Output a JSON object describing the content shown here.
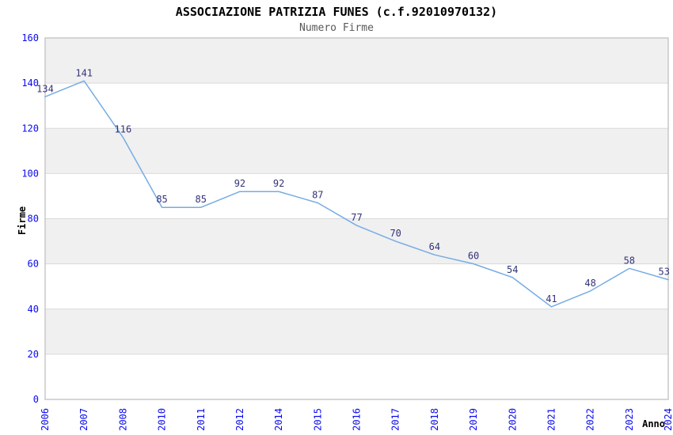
{
  "chart_data": {
    "type": "line",
    "title": "ASSOCIAZIONE PATRIZIA FUNES (c.f.92010970132)",
    "subtitle": "Numero Firme",
    "xlabel": "Anno",
    "ylabel": "Firme",
    "categories": [
      "2006",
      "2007",
      "2008",
      "2010",
      "2011",
      "2012",
      "2014",
      "2015",
      "2016",
      "2017",
      "2018",
      "2019",
      "2020",
      "2021",
      "2022",
      "2023",
      "2024"
    ],
    "values": [
      134,
      141,
      116,
      85,
      85,
      92,
      92,
      87,
      77,
      70,
      64,
      60,
      54,
      41,
      48,
      58,
      53
    ],
    "ylim": [
      0,
      160
    ],
    "yticks": [
      0,
      20,
      40,
      60,
      80,
      100,
      120,
      140,
      160
    ],
    "legend": "none",
    "grid": "horizontal-bands-alternating",
    "colors": {
      "line": "#76ace4",
      "tick_label": "#0a0af0",
      "data_label": "#333377",
      "band": "#f0f0f0",
      "band_alt": "#ffffff",
      "gridline": "#d9d9d9",
      "border": "#c9c9c9",
      "title": "#000000",
      "subtitle": "#595959",
      "axis_label": "#000000",
      "background": "#ffffff"
    }
  }
}
